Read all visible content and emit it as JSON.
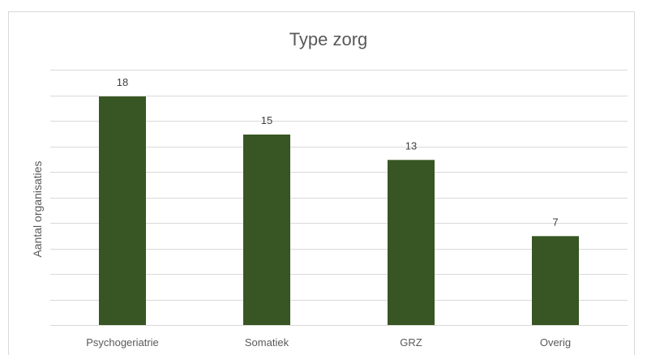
{
  "chart_data": {
    "type": "bar",
    "title": "Type zorg",
    "xlabel": "",
    "ylabel": "Aantal organisaties",
    "categories": [
      "Psychogeriatrie",
      "Somatiek",
      "GRZ",
      "Overig"
    ],
    "values": [
      18,
      15,
      13,
      7
    ],
    "ylim": [
      0,
      18
    ],
    "grid": true,
    "legend": "none",
    "bar_color": "#375623",
    "gridline_color": "#d9d9d9"
  }
}
